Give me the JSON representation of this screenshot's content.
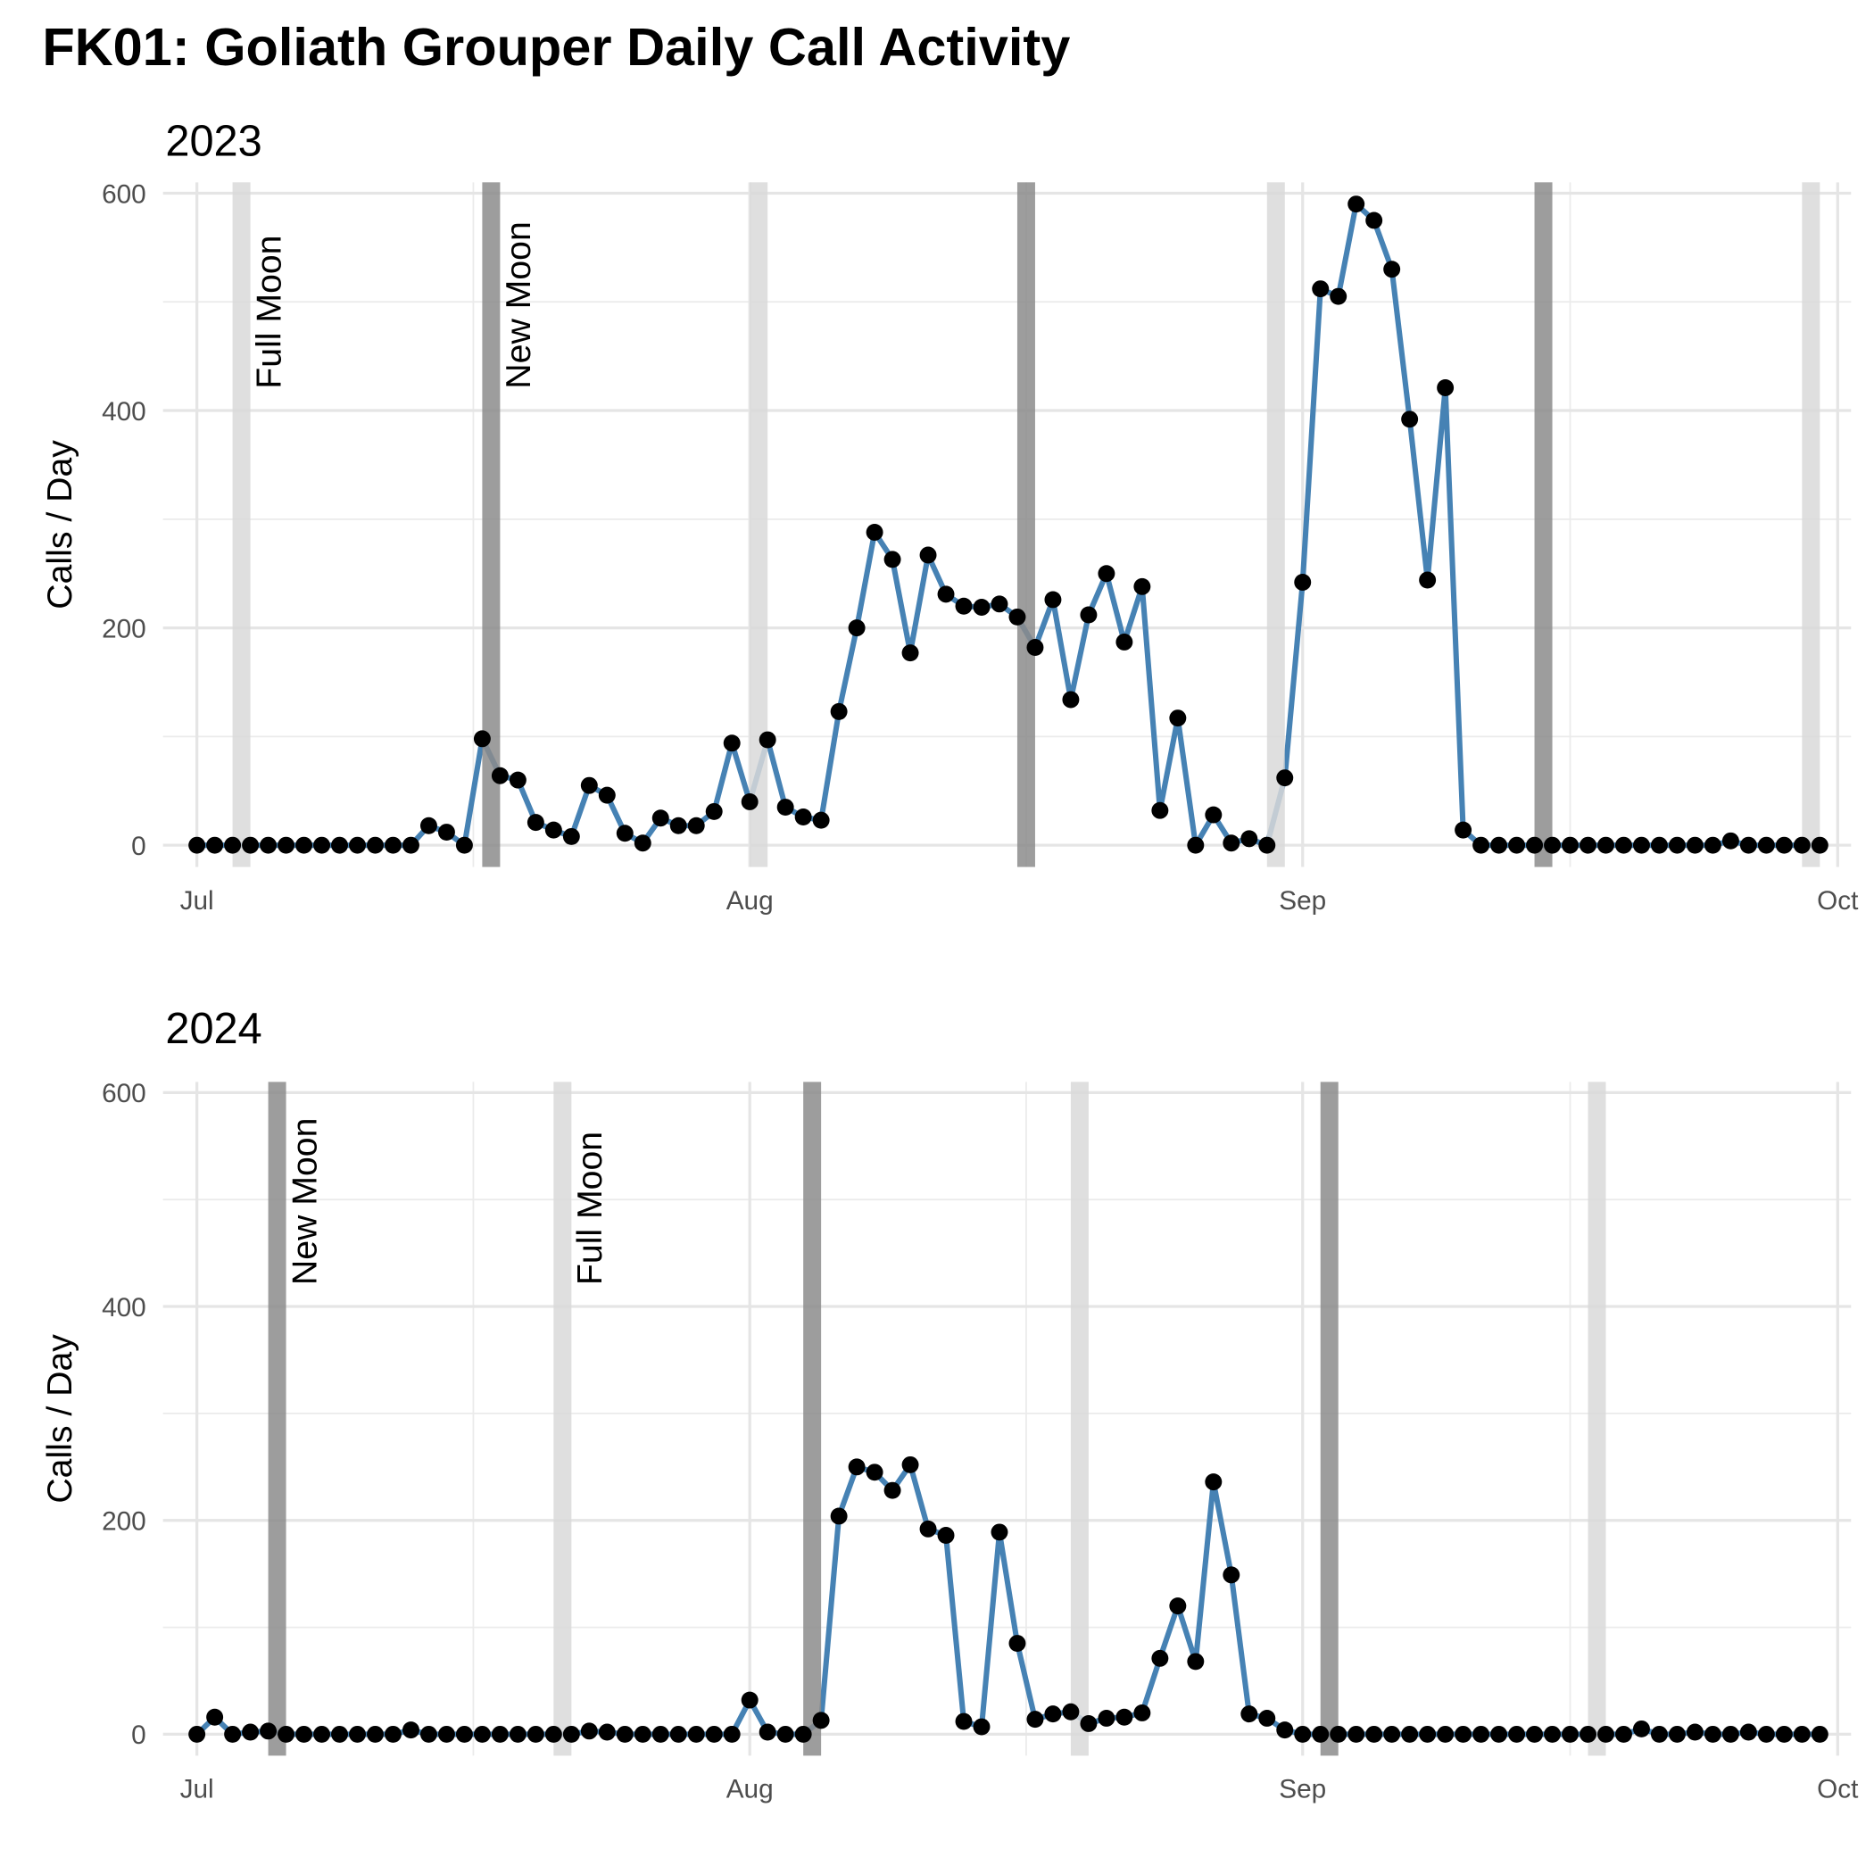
{
  "title": "FK01: Goliath Grouper Daily Call Activity",
  "chart_data": [
    {
      "type": "line",
      "title": "2023",
      "ylabel": "Calls / Day",
      "x": [
        0,
        1,
        2,
        3,
        4,
        5,
        6,
        7,
        8,
        9,
        10,
        11,
        12,
        13,
        14,
        15,
        16,
        17,
        18,
        19,
        20,
        21,
        22,
        23,
        24,
        25,
        26,
        27,
        28,
        29,
        30,
        31,
        32,
        33,
        34,
        35,
        36,
        37,
        38,
        39,
        40,
        41,
        42,
        43,
        44,
        45,
        46,
        47,
        48,
        49,
        50,
        51,
        52,
        53,
        54,
        55,
        56,
        57,
        58,
        59,
        60,
        61,
        62,
        63,
        64,
        65,
        66,
        67,
        68,
        69,
        70,
        71,
        72,
        73,
        74,
        75,
        76,
        77,
        78,
        79,
        80,
        81,
        82,
        83,
        84,
        85,
        86,
        87,
        88,
        89,
        90,
        91
      ],
      "series": [
        {
          "color": "#4682b4",
          "point_color": "#000000",
          "values": [
            0,
            0,
            0,
            0,
            0,
            0,
            0,
            0,
            0,
            0,
            0,
            0,
            0,
            18,
            12,
            0,
            98,
            64,
            60,
            21,
            14,
            8,
            55,
            46,
            11,
            2,
            25,
            18,
            18,
            31,
            94,
            40,
            97,
            35,
            26,
            23,
            123,
            200,
            288,
            263,
            177,
            267,
            231,
            220,
            219,
            222,
            210,
            182,
            226,
            134,
            212,
            250,
            187,
            238,
            32,
            117,
            0,
            28,
            2,
            6,
            0,
            62,
            242,
            512,
            505,
            590,
            575,
            530,
            392,
            244,
            421,
            14,
            0,
            0,
            0,
            0,
            0,
            0,
            0,
            0,
            0,
            0,
            0,
            0,
            0,
            0,
            4,
            0,
            0,
            0,
            0,
            0
          ]
        }
      ],
      "xlim": [
        -1.9,
        92.75
      ],
      "xticks": [
        {
          "value": 0,
          "label": "Jul"
        },
        {
          "value": 31,
          "label": "Aug"
        },
        {
          "value": 62,
          "label": "Sep"
        },
        {
          "value": 92,
          "label": "Oct"
        }
      ],
      "minor_xticks": [
        15.5,
        46.5,
        77
      ],
      "ylim": [
        -20,
        610
      ],
      "yticks": [
        0,
        200,
        400,
        600
      ],
      "minor_yticks": [
        100,
        300,
        500
      ],
      "grid": true,
      "moon": [
        {
          "label": "Full Moon",
          "color": "#d9d9d9",
          "x": [
            2,
            31,
            60,
            90
          ]
        },
        {
          "label": "New Moon",
          "color": "#8c8c8c",
          "x": [
            16,
            46,
            75
          ]
        }
      ]
    },
    {
      "type": "line",
      "title": "2024",
      "ylabel": "Calls / Day",
      "x": [
        0,
        1,
        2,
        3,
        4,
        5,
        6,
        7,
        8,
        9,
        10,
        11,
        12,
        13,
        14,
        15,
        16,
        17,
        18,
        19,
        20,
        21,
        22,
        23,
        24,
        25,
        26,
        27,
        28,
        29,
        30,
        31,
        32,
        33,
        34,
        35,
        36,
        37,
        38,
        39,
        40,
        41,
        42,
        43,
        44,
        45,
        46,
        47,
        48,
        49,
        50,
        51,
        52,
        53,
        54,
        55,
        56,
        57,
        58,
        59,
        60,
        61,
        62,
        63,
        64,
        65,
        66,
        67,
        68,
        69,
        70,
        71,
        72,
        73,
        74,
        75,
        76,
        77,
        78,
        79,
        80,
        81,
        82,
        83,
        84,
        85,
        86,
        87,
        88,
        89,
        90,
        91
      ],
      "series": [
        {
          "color": "#4682b4",
          "point_color": "#000000",
          "values": [
            0,
            16,
            0,
            2,
            3,
            0,
            0,
            0,
            0,
            0,
            0,
            0,
            4,
            0,
            0,
            0,
            0,
            0,
            0,
            0,
            0,
            0,
            3,
            2,
            0,
            0,
            0,
            0,
            0,
            0,
            0,
            32,
            2,
            0,
            0,
            13,
            204,
            250,
            245,
            228,
            252,
            192,
            186,
            12,
            7,
            189,
            85,
            14,
            19,
            21,
            10,
            15,
            16,
            20,
            71,
            120,
            68,
            236,
            149,
            19,
            15,
            4,
            0,
            0,
            0,
            0,
            0,
            0,
            0,
            0,
            0,
            0,
            0,
            0,
            0,
            0,
            0,
            0,
            0,
            0,
            0,
            5,
            0,
            0,
            2,
            0,
            0,
            2,
            0,
            0,
            0,
            0
          ]
        }
      ],
      "xlim": [
        -1.9,
        92.75
      ],
      "xticks": [
        {
          "value": 0,
          "label": "Jul"
        },
        {
          "value": 31,
          "label": "Aug"
        },
        {
          "value": 62,
          "label": "Sep"
        },
        {
          "value": 92,
          "label": "Oct"
        }
      ],
      "minor_xticks": [
        15.5,
        46.5,
        77
      ],
      "ylim": [
        -20,
        610
      ],
      "yticks": [
        0,
        200,
        400,
        600
      ],
      "minor_yticks": [
        100,
        300,
        500
      ],
      "grid": true,
      "moon": [
        {
          "label": "New Moon",
          "color": "#8c8c8c",
          "x": [
            4,
            34,
            63
          ]
        },
        {
          "label": "Full Moon",
          "color": "#d9d9d9",
          "x": [
            20,
            49,
            78
          ]
        }
      ]
    }
  ]
}
